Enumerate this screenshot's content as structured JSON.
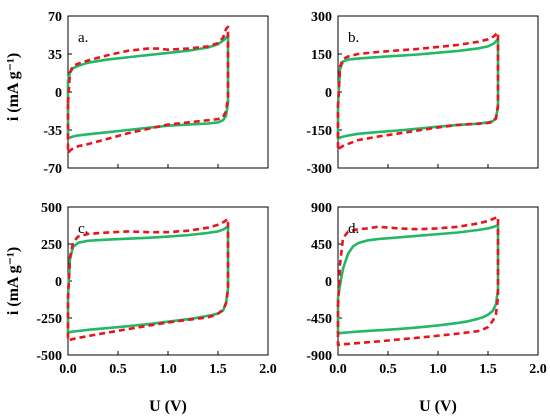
{
  "colors": {
    "solid_series": "#22b864",
    "dashed_series": "#e8141e",
    "axis": "#000000"
  },
  "axis_titles": {
    "y": "i (mA g⁻¹)",
    "x": "U (V)"
  },
  "chart_data": [
    {
      "type": "line",
      "panel_label": "a.",
      "xlim": [
        0,
        2.0
      ],
      "ylim": [
        -70,
        70
      ],
      "xticks": [
        "0.0",
        "0.5",
        "1.0",
        "1.5",
        "2.0"
      ],
      "yticks": [
        "70",
        "35",
        "0",
        "-35",
        "-70"
      ],
      "ytick_values": [
        70,
        35,
        0,
        -35,
        -70
      ],
      "series": [
        {
          "style": "solid",
          "color": "#22b864",
          "x": [
            0.0,
            0.02,
            0.05,
            0.1,
            0.2,
            0.4,
            0.6,
            0.8,
            1.0,
            1.2,
            1.4,
            1.5,
            1.56,
            1.58,
            1.6,
            1.6,
            1.58,
            1.55,
            1.5,
            1.4,
            1.2,
            1.0,
            0.8,
            0.6,
            0.4,
            0.2,
            0.1,
            0.05,
            0.02,
            0.0,
            0.0
          ],
          "y": [
            10,
            18,
            22,
            24,
            27,
            30,
            32,
            34,
            36,
            38,
            41,
            44,
            48,
            50,
            52,
            -10,
            -22,
            -26,
            -28,
            -29,
            -30,
            -31,
            -33,
            -35,
            -37,
            -39,
            -40,
            -41,
            -42,
            -42,
            10
          ]
        },
        {
          "style": "dashed",
          "color": "#e8141e",
          "x": [
            0.0,
            0.02,
            0.05,
            0.1,
            0.2,
            0.4,
            0.6,
            0.8,
            0.9,
            1.0,
            1.2,
            1.4,
            1.5,
            1.55,
            1.58,
            1.6,
            1.6,
            1.58,
            1.55,
            1.5,
            1.4,
            1.2,
            1.0,
            0.8,
            0.6,
            0.4,
            0.2,
            0.1,
            0.05,
            0.02,
            0.0,
            0.0
          ],
          "y": [
            -10,
            18,
            24,
            26,
            29,
            34,
            38,
            40,
            40,
            39,
            40,
            42,
            45,
            50,
            58,
            60,
            -5,
            -18,
            -23,
            -25,
            -26,
            -28,
            -30,
            -34,
            -38,
            -43,
            -48,
            -50,
            -52,
            -54,
            -56,
            -10
          ]
        }
      ]
    },
    {
      "type": "line",
      "panel_label": "b.",
      "xlim": [
        0,
        2.0
      ],
      "ylim": [
        -300,
        300
      ],
      "xticks": [
        "0.0",
        "0.5",
        "1.0",
        "1.5",
        "2.0"
      ],
      "yticks": [
        "300",
        "150",
        "0",
        "-150",
        "-300"
      ],
      "ytick_values": [
        300,
        150,
        0,
        -150,
        -300
      ],
      "series": [
        {
          "style": "solid",
          "color": "#22b864",
          "x": [
            0.0,
            0.02,
            0.05,
            0.1,
            0.2,
            0.4,
            0.6,
            0.8,
            1.0,
            1.2,
            1.4,
            1.5,
            1.56,
            1.58,
            1.6,
            1.6,
            1.58,
            1.55,
            1.5,
            1.4,
            1.2,
            1.0,
            0.8,
            0.6,
            0.4,
            0.2,
            0.1,
            0.05,
            0.02,
            0.0,
            0.0
          ],
          "y": [
            -50,
            90,
            120,
            128,
            132,
            138,
            143,
            148,
            155,
            162,
            172,
            180,
            192,
            200,
            210,
            -60,
            -100,
            -115,
            -120,
            -125,
            -130,
            -137,
            -145,
            -152,
            -158,
            -165,
            -172,
            -176,
            -180,
            -185,
            -50
          ]
        },
        {
          "style": "dashed",
          "color": "#e8141e",
          "x": [
            0.0,
            0.02,
            0.05,
            0.1,
            0.2,
            0.4,
            0.6,
            0.8,
            1.0,
            1.2,
            1.4,
            1.5,
            1.56,
            1.58,
            1.6,
            1.6,
            1.58,
            1.55,
            1.5,
            1.4,
            1.2,
            1.0,
            0.8,
            0.6,
            0.4,
            0.2,
            0.1,
            0.05,
            0.02,
            0.0,
            0.0
          ],
          "y": [
            -60,
            100,
            130,
            140,
            150,
            158,
            164,
            170,
            178,
            186,
            198,
            208,
            220,
            228,
            235,
            -50,
            -105,
            -118,
            -122,
            -125,
            -130,
            -140,
            -152,
            -164,
            -176,
            -190,
            -205,
            -213,
            -220,
            -230,
            -60
          ]
        }
      ]
    },
    {
      "type": "line",
      "panel_label": "c.",
      "xlim": [
        0,
        2.0
      ],
      "ylim": [
        -500,
        500
      ],
      "xticks": [
        "0.0",
        "0.5",
        "1.0",
        "1.5",
        "2.0"
      ],
      "yticks": [
        "500",
        "250",
        "0",
        "-250",
        "-500"
      ],
      "ytick_values": [
        500,
        250,
        0,
        -250,
        -500
      ],
      "series": [
        {
          "style": "solid",
          "color": "#22b864",
          "x": [
            0.0,
            0.02,
            0.05,
            0.1,
            0.2,
            0.4,
            0.6,
            0.8,
            1.0,
            1.2,
            1.4,
            1.5,
            1.56,
            1.58,
            1.6,
            1.6,
            1.58,
            1.55,
            1.5,
            1.45,
            1.4,
            1.3,
            1.2,
            1.0,
            0.8,
            0.6,
            0.4,
            0.2,
            0.1,
            0.05,
            0.02,
            0.0,
            0.0
          ],
          "y": [
            -100,
            150,
            230,
            258,
            272,
            280,
            286,
            292,
            300,
            310,
            325,
            335,
            350,
            360,
            370,
            -50,
            -150,
            -200,
            -220,
            -228,
            -235,
            -248,
            -258,
            -275,
            -292,
            -305,
            -318,
            -330,
            -338,
            -342,
            -345,
            -348,
            -100
          ]
        },
        {
          "style": "dashed",
          "color": "#e8141e",
          "x": [
            0.0,
            0.02,
            0.05,
            0.1,
            0.2,
            0.4,
            0.6,
            0.8,
            1.0,
            1.2,
            1.4,
            1.5,
            1.56,
            1.58,
            1.6,
            1.6,
            1.58,
            1.55,
            1.5,
            1.45,
            1.4,
            1.2,
            1.0,
            0.8,
            0.6,
            0.4,
            0.2,
            0.1,
            0.05,
            0.02,
            0.0,
            0.0
          ],
          "y": [
            -120,
            160,
            260,
            300,
            318,
            328,
            335,
            330,
            330,
            340,
            360,
            380,
            400,
            410,
            420,
            -60,
            -150,
            -195,
            -220,
            -235,
            -245,
            -262,
            -280,
            -302,
            -325,
            -348,
            -372,
            -385,
            -392,
            -398,
            -402,
            -120
          ]
        }
      ]
    },
    {
      "type": "line",
      "panel_label": "d.",
      "xlim": [
        0,
        2.0
      ],
      "ylim": [
        -900,
        900
      ],
      "xticks": [
        "0.0",
        "0.5",
        "1.0",
        "1.5",
        "2.0"
      ],
      "yticks": [
        "900",
        "450",
        "0",
        "-450",
        "-900"
      ],
      "ytick_values": [
        900,
        450,
        0,
        -450,
        -900
      ],
      "series": [
        {
          "style": "solid",
          "color": "#22b864",
          "x": [
            0.0,
            0.02,
            0.05,
            0.1,
            0.15,
            0.2,
            0.3,
            0.4,
            0.6,
            0.8,
            1.0,
            1.2,
            1.4,
            1.5,
            1.56,
            1.58,
            1.6,
            1.6,
            1.58,
            1.55,
            1.5,
            1.45,
            1.4,
            1.3,
            1.2,
            1.0,
            0.8,
            0.6,
            0.4,
            0.2,
            0.1,
            0.05,
            0.02,
            0.0,
            0.0
          ],
          "y": [
            -200,
            -50,
            150,
            330,
            420,
            460,
            495,
            510,
            530,
            550,
            570,
            590,
            620,
            640,
            660,
            670,
            680,
            -100,
            -280,
            -360,
            -410,
            -440,
            -460,
            -490,
            -510,
            -540,
            -565,
            -585,
            -600,
            -615,
            -625,
            -630,
            -633,
            -635,
            -200
          ]
        },
        {
          "style": "dashed",
          "color": "#e8141e",
          "x": [
            0.0,
            0.02,
            0.05,
            0.1,
            0.2,
            0.3,
            0.4,
            0.6,
            0.8,
            1.0,
            1.2,
            1.4,
            1.5,
            1.56,
            1.58,
            1.6,
            1.6,
            1.58,
            1.55,
            1.5,
            1.45,
            1.4,
            1.2,
            1.0,
            0.8,
            0.6,
            0.4,
            0.2,
            0.1,
            0.05,
            0.02,
            0.0,
            0.0
          ],
          "y": [
            -300,
            200,
            520,
            600,
            630,
            640,
            660,
            640,
            630,
            640,
            660,
            700,
            730,
            760,
            770,
            780,
            -200,
            -400,
            -480,
            -560,
            -590,
            -610,
            -640,
            -665,
            -690,
            -712,
            -735,
            -755,
            -765,
            -770,
            -775,
            -778,
            -300
          ]
        }
      ]
    }
  ]
}
